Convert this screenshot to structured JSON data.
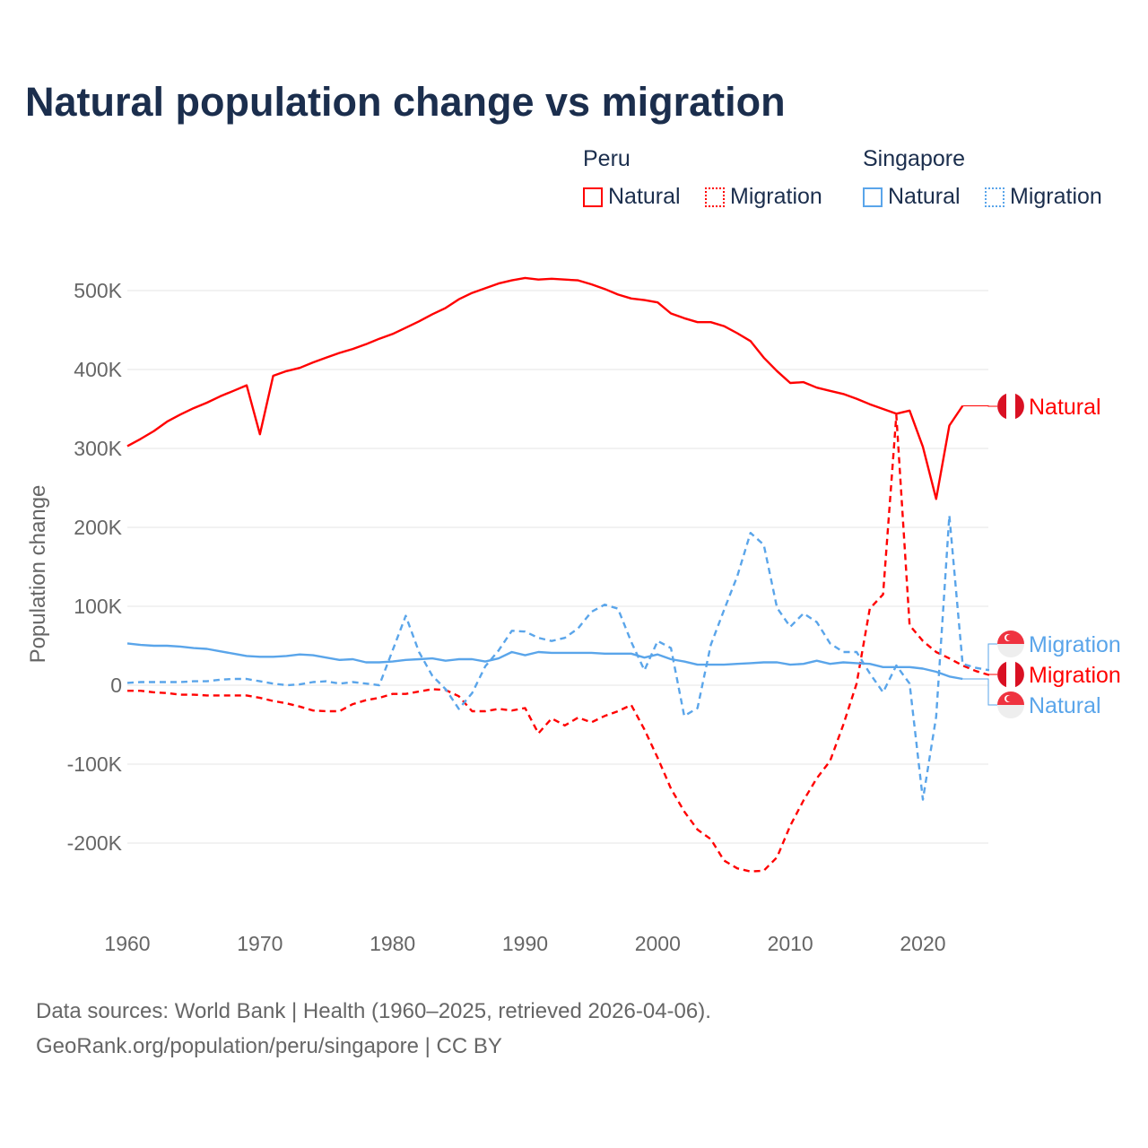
{
  "title": "Natural population change vs migration",
  "legend": {
    "groups": [
      {
        "name": "Peru",
        "items": [
          {
            "label": "Natural",
            "style": "solid"
          },
          {
            "label": "Migration",
            "style": "dotted"
          }
        ]
      },
      {
        "name": "Singapore",
        "items": [
          {
            "label": "Natural",
            "style": "solid"
          },
          {
            "label": "Migration",
            "style": "dotted"
          }
        ]
      }
    ]
  },
  "source_lines": [
    "Data sources: World Bank | Health (1960–2025, retrieved 2026-04-06).",
    "GeoRank.org/population/peru/singapore | CC BY"
  ],
  "colors": {
    "peru": "#ff0000",
    "singapore": "#5aa5ea",
    "grid": "#e6e6e6",
    "tick": "#666666"
  },
  "chart_data": {
    "type": "line",
    "title": "Natural population change vs migration",
    "xlabel": "",
    "ylabel": "Population change",
    "xlim": [
      1960,
      2025
    ],
    "ylim": [
      -280000,
      540000
    ],
    "xticks": [
      1960,
      1970,
      1980,
      1990,
      2000,
      2010,
      2020
    ],
    "xtick_labels": [
      "1960",
      "1970",
      "1980",
      "1990",
      "2000",
      "2010",
      "2020"
    ],
    "yticks": [
      -200000,
      -100000,
      0,
      100000,
      200000,
      300000,
      400000,
      500000
    ],
    "ytick_labels": [
      "-200K",
      "-100K",
      "0",
      "100K",
      "200K",
      "300K",
      "400K",
      "500K"
    ],
    "grid": true,
    "series": [
      {
        "name": "Peru Natural",
        "country": "peru",
        "dash": false,
        "end_label": "Natural",
        "start": 1960,
        "values": [
          303000,
          312000,
          322000,
          334000,
          343000,
          351000,
          358000,
          366000,
          373000,
          380000,
          318000,
          392000,
          398000,
          402000,
          409000,
          415000,
          421000,
          426000,
          432000,
          439000,
          445000,
          453000,
          461000,
          470000,
          478000,
          489000,
          497000,
          503000,
          509000,
          513000,
          516000,
          514000,
          515000,
          514000,
          513000,
          508000,
          502000,
          495000,
          490000,
          488000,
          485000,
          471000,
          465000,
          460000,
          460000,
          455000,
          446000,
          436000,
          415000,
          398000,
          383000,
          384000,
          377000,
          373000,
          369000,
          363000,
          356000,
          350000,
          344000,
          348000,
          302000,
          236000,
          329000,
          354000
        ]
      },
      {
        "name": "Peru Migration",
        "country": "peru",
        "dash": true,
        "end_label": "Migration",
        "start": 1960,
        "values": [
          -7000,
          -7000,
          -9000,
          -10000,
          -12000,
          -12000,
          -13000,
          -13000,
          -13000,
          -13000,
          -16000,
          -20000,
          -23000,
          -27000,
          -32000,
          -33000,
          -33000,
          -24000,
          -19000,
          -16000,
          -11000,
          -11000,
          -8000,
          -5000,
          -6000,
          -14000,
          -33000,
          -33000,
          -30000,
          -32000,
          -29000,
          -61000,
          -42000,
          -51000,
          -41000,
          -47000,
          -39000,
          -33000,
          -25000,
          -56000,
          -92000,
          -131000,
          -160000,
          -183000,
          -195000,
          -222000,
          -232000,
          -236000,
          -235000,
          -218000,
          -178000,
          -146000,
          -118000,
          -96000,
          -50000,
          2000,
          97000,
          115000,
          342000,
          76000,
          56000,
          42000,
          34000,
          25000,
          18000,
          13000
        ]
      },
      {
        "name": "Singapore Natural",
        "country": "singapore",
        "dash": false,
        "end_label": "Natural",
        "start": 1960,
        "values": [
          53000,
          51000,
          50000,
          50000,
          49000,
          47000,
          46000,
          43000,
          40000,
          37000,
          36000,
          36000,
          37000,
          39000,
          38000,
          35000,
          32000,
          33000,
          29000,
          29000,
          30000,
          32000,
          33000,
          34000,
          31000,
          33000,
          33000,
          30000,
          34000,
          42000,
          38000,
          42000,
          41000,
          41000,
          41000,
          41000,
          40000,
          40000,
          40000,
          35000,
          39000,
          33000,
          30000,
          26000,
          26000,
          26000,
          27000,
          28000,
          29000,
          29000,
          26000,
          27000,
          31000,
          27000,
          29000,
          28000,
          27000,
          23000,
          23000,
          23000,
          21000,
          17000,
          11000,
          8000
        ]
      },
      {
        "name": "Singapore Migration",
        "country": "singapore",
        "dash": true,
        "end_label": "Migration",
        "start": 1960,
        "values": [
          3000,
          4000,
          4000,
          4000,
          4000,
          5000,
          5000,
          7000,
          8000,
          8000,
          5000,
          2000,
          0,
          1000,
          4000,
          5000,
          2000,
          4000,
          2000,
          0,
          44000,
          88000,
          42000,
          12000,
          -5000,
          -30000,
          -10000,
          24000,
          44000,
          69000,
          68000,
          60000,
          56000,
          60000,
          72000,
          93000,
          102000,
          97000,
          55000,
          19000,
          56000,
          47000,
          -39000,
          -29000,
          51000,
          95000,
          138000,
          193000,
          178000,
          98000,
          74000,
          91000,
          80000,
          53000,
          42000,
          42000,
          15000,
          -9000,
          25000,
          2000,
          -145000,
          -40000,
          215000,
          27000,
          22000,
          19000
        ]
      }
    ]
  }
}
